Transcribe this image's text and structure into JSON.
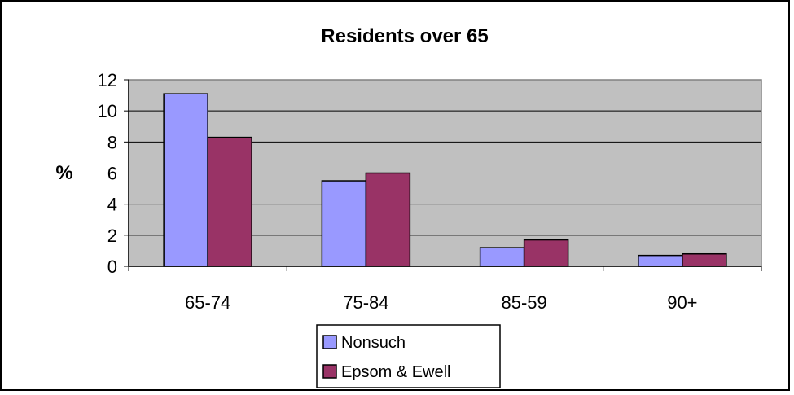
{
  "chart_data": {
    "type": "bar",
    "title": "Residents over 65",
    "xlabel": "",
    "ylabel": "%",
    "ylim": [
      0,
      12
    ],
    "yticks": [
      0,
      2,
      4,
      6,
      8,
      10,
      12
    ],
    "categories": [
      "65-74",
      "75-84",
      "85-59",
      "90+"
    ],
    "series": [
      {
        "name": "Nonsuch",
        "values": [
          11.1,
          5.5,
          1.2,
          0.7
        ],
        "color": "#9999ff"
      },
      {
        "name": "Epsom & Ewell",
        "values": [
          8.3,
          6.0,
          1.7,
          0.8
        ],
        "color": "#993366"
      }
    ],
    "plot_background": "#c0c0c0",
    "grid": true,
    "legend_position": "bottom"
  }
}
